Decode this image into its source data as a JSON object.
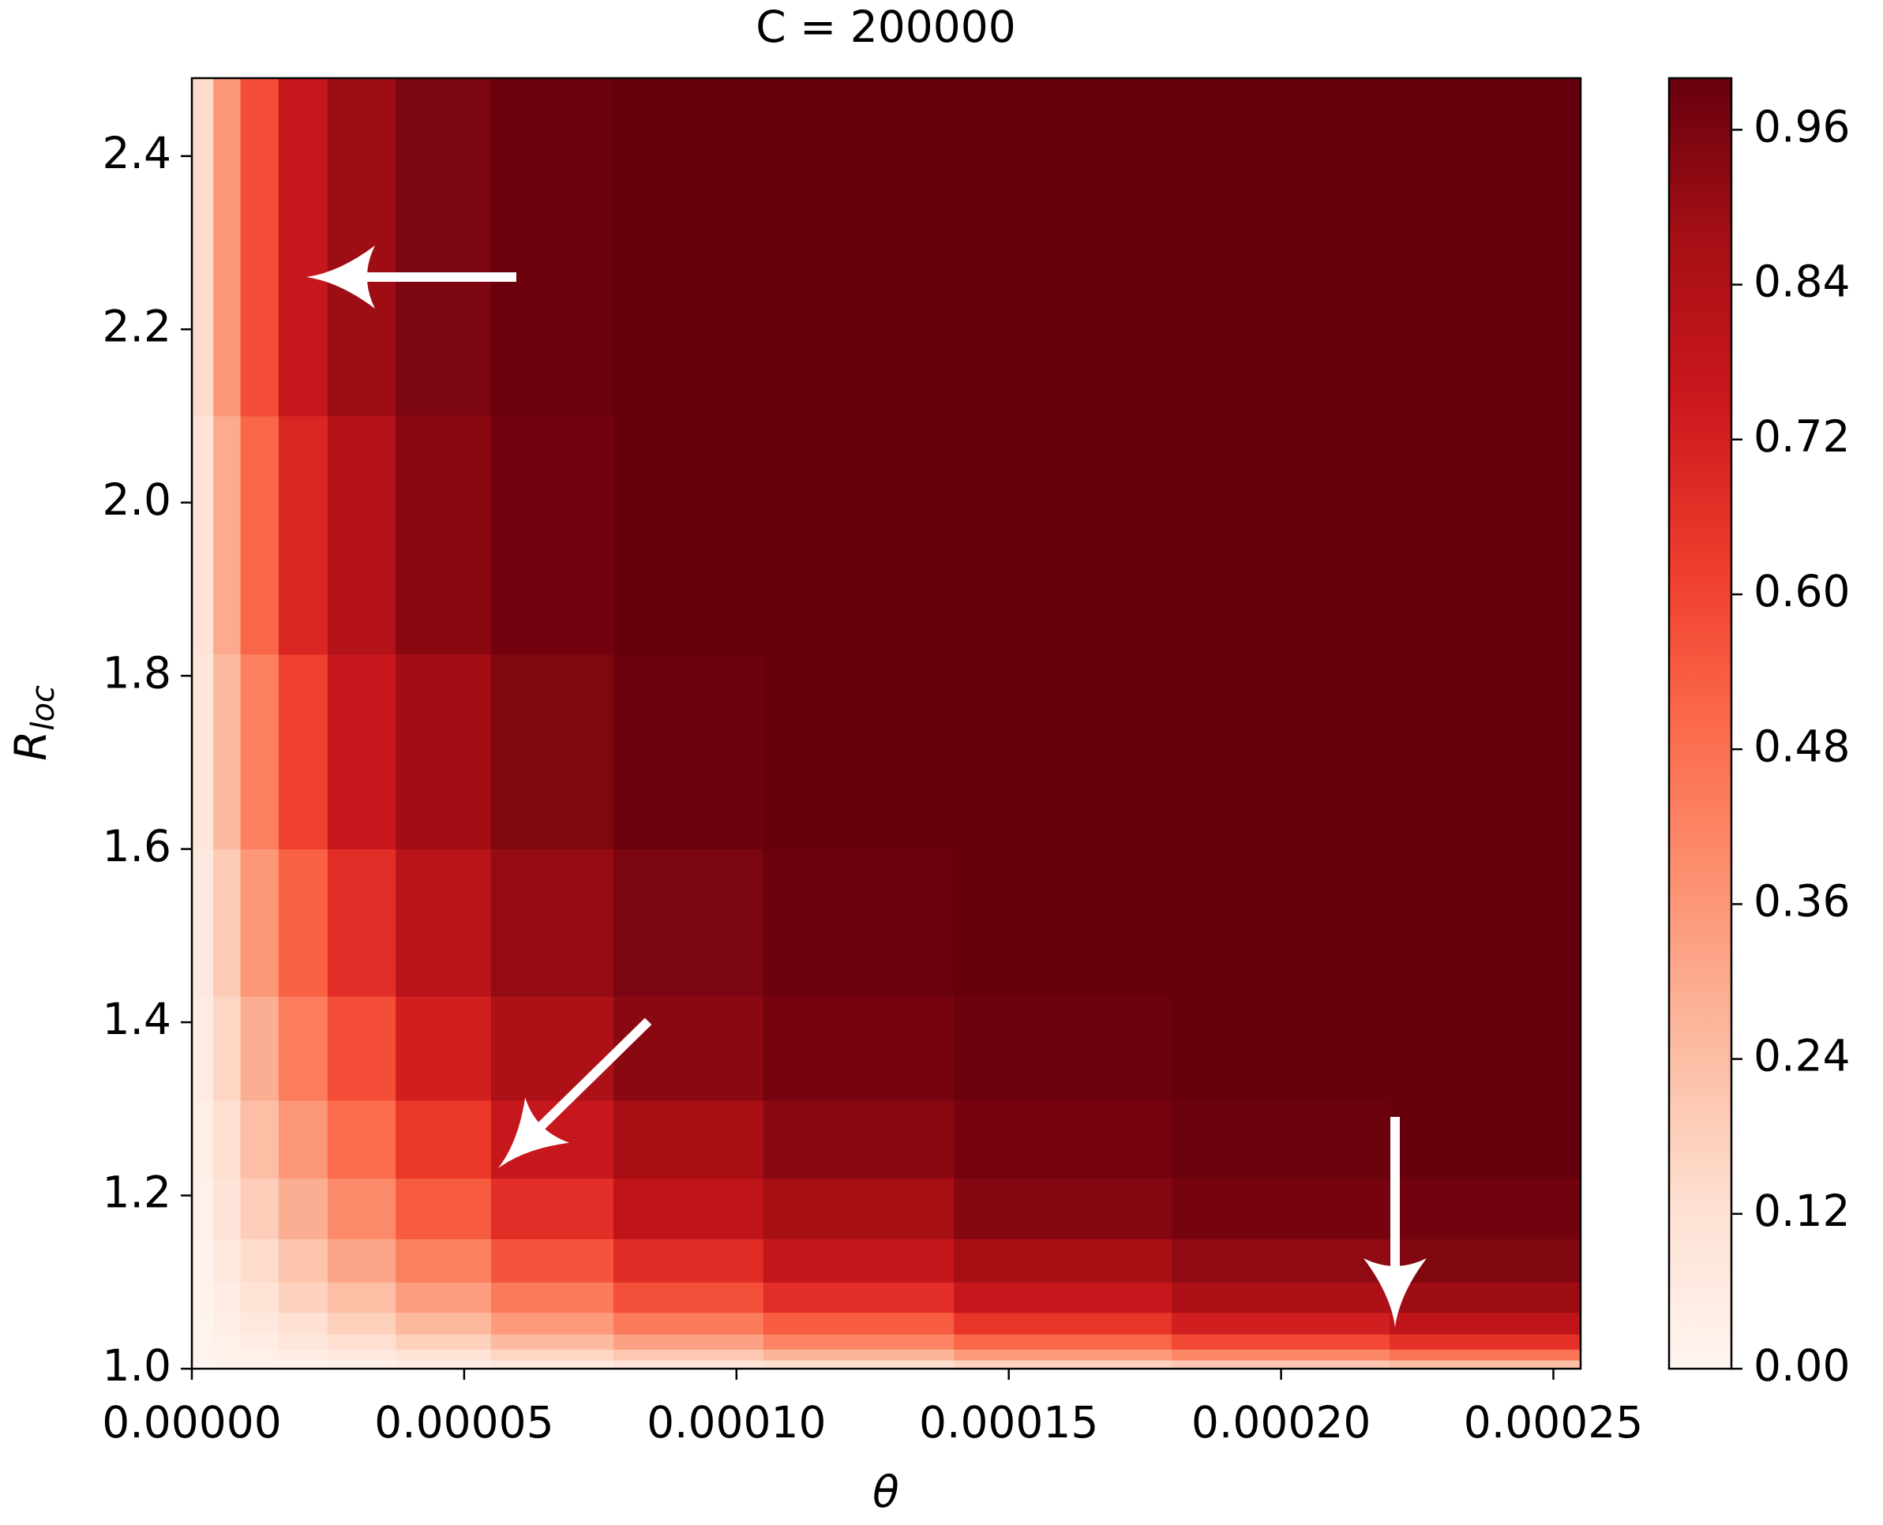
{
  "chart_data": {
    "type": "contour",
    "title": "C = 200000",
    "xlabel": "θ",
    "ylabel": "R",
    "ylabel_subscript": "loc",
    "colormap": "Reds",
    "x": [
      2e-06,
      6e-06,
      1.2e-05,
      2e-05,
      3e-05,
      4.5e-05,
      6.5e-05,
      9e-05,
      0.00012,
      0.00016,
      0.0002,
      0.00024
    ],
    "y": [
      1.005,
      1.015,
      1.03,
      1.05,
      1.08,
      1.12,
      1.18,
      1.26,
      1.36,
      1.5,
      1.7,
      1.95,
      2.25
    ],
    "z": [
      [
        0.0,
        0.01,
        0.01,
        0.02,
        0.03,
        0.05,
        0.07,
        0.1,
        0.13,
        0.17,
        0.21,
        0.24
      ],
      [
        0.01,
        0.02,
        0.03,
        0.05,
        0.08,
        0.11,
        0.16,
        0.21,
        0.27,
        0.35,
        0.41,
        0.47
      ],
      [
        0.01,
        0.03,
        0.05,
        0.09,
        0.13,
        0.18,
        0.25,
        0.33,
        0.42,
        0.51,
        0.59,
        0.66
      ],
      [
        0.01,
        0.04,
        0.08,
        0.12,
        0.18,
        0.26,
        0.35,
        0.45,
        0.54,
        0.65,
        0.73,
        0.79
      ],
      [
        0.02,
        0.05,
        0.11,
        0.17,
        0.24,
        0.34,
        0.45,
        0.57,
        0.67,
        0.77,
        0.85,
        0.89
      ],
      [
        0.02,
        0.07,
        0.14,
        0.22,
        0.32,
        0.43,
        0.56,
        0.68,
        0.78,
        0.87,
        0.92,
        0.95
      ],
      [
        0.03,
        0.1,
        0.19,
        0.29,
        0.4,
        0.54,
        0.67,
        0.79,
        0.87,
        0.94,
        0.97,
        0.98
      ],
      [
        0.04,
        0.13,
        0.24,
        0.36,
        0.49,
        0.64,
        0.77,
        0.87,
        0.93,
        0.97,
        0.99,
        1.0
      ],
      [
        0.06,
        0.16,
        0.29,
        0.44,
        0.58,
        0.73,
        0.85,
        0.93,
        0.97,
        0.99,
        1.0,
        1.0
      ],
      [
        0.07,
        0.2,
        0.36,
        0.52,
        0.67,
        0.81,
        0.91,
        0.96,
        0.99,
        1.0,
        1.0,
        1.0
      ],
      [
        0.09,
        0.25,
        0.43,
        0.61,
        0.76,
        0.88,
        0.95,
        0.99,
        1.0,
        1.0,
        1.0,
        1.0
      ],
      [
        0.11,
        0.3,
        0.51,
        0.7,
        0.83,
        0.93,
        0.98,
        1.0,
        1.0,
        1.0,
        1.0,
        1.0
      ],
      [
        0.14,
        0.36,
        0.58,
        0.77,
        0.89,
        0.96,
        0.99,
        1.0,
        1.0,
        1.0,
        1.0,
        1.0
      ]
    ],
    "xlim": [
      0,
      0.000255
    ],
    "ylim": [
      1.0,
      2.49
    ],
    "xticks": [
      {
        "value": 0,
        "label": "0.00000"
      },
      {
        "value": 5e-05,
        "label": "0.00005"
      },
      {
        "value": 0.0001,
        "label": "0.00010"
      },
      {
        "value": 0.00015,
        "label": "0.00015"
      },
      {
        "value": 0.0002,
        "label": "0.00020"
      },
      {
        "value": 0.00025,
        "label": "0.00025"
      }
    ],
    "yticks": [
      {
        "value": 1.0,
        "label": "1.0"
      },
      1.2,
      1.4,
      1.6,
      1.8,
      {
        "value": 2.0,
        "label": "2.0"
      },
      2.2,
      2.4
    ],
    "clim": [
      0,
      1
    ],
    "cticks": [
      {
        "value": 0,
        "label": "0.00"
      },
      0.12,
      0.24,
      0.36,
      0.48,
      {
        "value": 0.6,
        "label": "0.60"
      },
      0.72,
      0.84,
      0.96
    ]
  }
}
